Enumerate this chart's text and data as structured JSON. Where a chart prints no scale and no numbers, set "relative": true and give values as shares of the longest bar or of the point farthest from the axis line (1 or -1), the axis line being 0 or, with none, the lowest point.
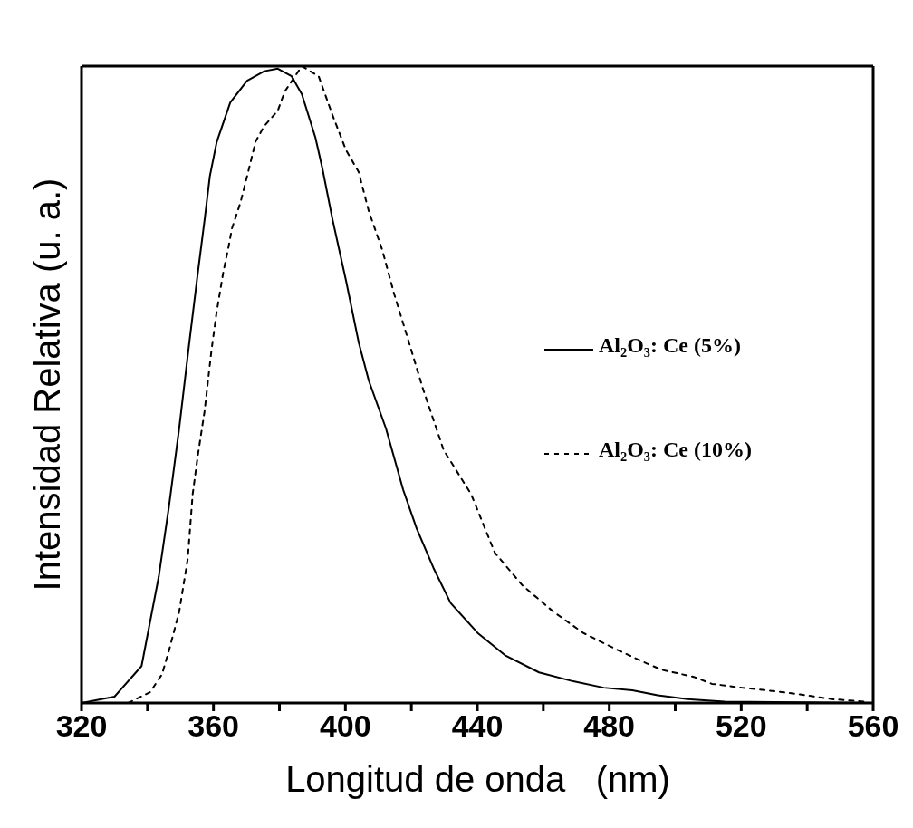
{
  "chart_data": {
    "type": "line",
    "relative": true,
    "xlabel": "Longitud de onda   (nm)",
    "ylabel": "Intensidad Relativa  (u. a.)",
    "xlim": [
      320,
      560
    ],
    "xticks": [
      320,
      {
        "value": 340,
        "label": null
      },
      360,
      {
        "value": 380,
        "label": null
      },
      400,
      {
        "value": 420,
        "label": null
      },
      440,
      {
        "value": 460,
        "label": null
      },
      480,
      {
        "value": 500,
        "label": null
      },
      520,
      {
        "value": 540,
        "label": null
      },
      560
    ],
    "legend": "right",
    "marker": "none",
    "series": [
      {
        "name": "Al₂O₃: Ce (5%)",
        "color": "#000000",
        "line_style": "solid",
        "x": [
          320,
          330,
          338.2,
          343.4,
          346.5,
          349.6,
          352.7,
          355.3,
          357.3,
          358.9,
          361,
          365.1,
          370.2,
          375.4,
          379.5,
          383.7,
          386.8,
          390.9,
          393,
          396.1,
          400.2,
          404,
          407.1,
          412.3,
          417.5,
          421.6,
          426.7,
          431.9,
          440.1,
          448.4,
          458.7,
          469.1,
          478.3,
          487,
          494.7,
          503.8,
          515,
          560
        ],
        "values": [
          0,
          0.01,
          0.058,
          0.198,
          0.308,
          0.431,
          0.567,
          0.677,
          0.758,
          0.827,
          0.881,
          0.943,
          0.977,
          0.992,
          0.996,
          0.984,
          0.956,
          0.888,
          0.84,
          0.759,
          0.663,
          0.567,
          0.506,
          0.431,
          0.335,
          0.274,
          0.212,
          0.157,
          0.11,
          0.075,
          0.048,
          0.034,
          0.024,
          0.02,
          0.012,
          0.006,
          0.002,
          0
        ]
      },
      {
        "name": "Al₂O₃: Ce (10%)",
        "color": "#000000",
        "line_style": "dashed",
        "x": [
          334.1,
          340.8,
          344.4,
          346.5,
          349.6,
          352.2,
          353.7,
          355.3,
          357.3,
          359.4,
          361,
          363,
          364.6,
          365.6,
          368.2,
          370.2,
          372.8,
          375.4,
          379.5,
          381.6,
          386.8,
          391.9,
          396.1,
          400.2,
          404,
          407.1,
          411.2,
          414.8,
          418.4,
          423.6,
          429.8,
          438.1,
          445.3,
          453.6,
          462.9,
          472.1,
          481.8,
          486.4,
          491.4,
          496,
          505.6,
          511.1,
          520.2,
          529.4,
          538.5,
          547.6,
          557.7
        ],
        "values": [
          0,
          0.017,
          0.045,
          0.082,
          0.143,
          0.226,
          0.328,
          0.39,
          0.458,
          0.554,
          0.615,
          0.677,
          0.717,
          0.745,
          0.786,
          0.827,
          0.882,
          0.906,
          0.93,
          0.96,
          1,
          0.984,
          0.923,
          0.868,
          0.834,
          0.772,
          0.711,
          0.642,
          0.581,
          0.492,
          0.397,
          0.328,
          0.236,
          0.185,
          0.144,
          0.11,
          0.085,
          0.074,
          0.062,
          0.052,
          0.041,
          0.03,
          0.024,
          0.019,
          0.013,
          0.006,
          0.002
        ]
      }
    ]
  }
}
